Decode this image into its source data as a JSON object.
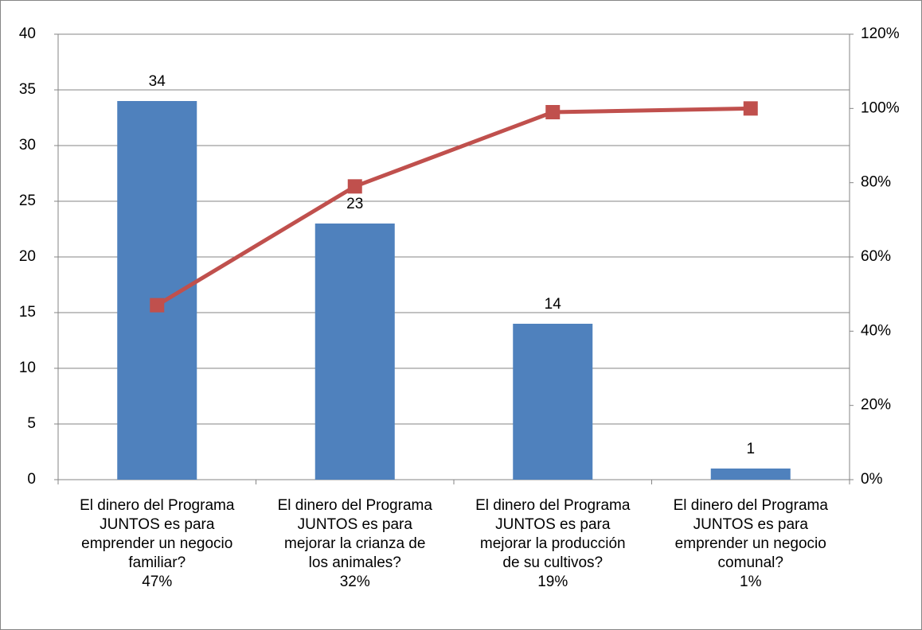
{
  "chart_data": {
    "type": "bar",
    "categories": [
      "El dinero del Programa\nJUNTOS es para\nemprender un negocio\nfamiliar?\n47%",
      "El dinero del Programa\nJUNTOS es para\nmejorar la crianza de\nlos animales?\n32%",
      "El dinero del Programa\nJUNTOS es para\nmejorar la producción\nde su cultivos?\n19%",
      "El dinero del Programa\nJUNTOS es para\nemprender un negocio\ncomunal?\n1%"
    ],
    "series": [
      {
        "type": "bar",
        "color": "#4f81bd",
        "values": [
          34,
          23,
          14,
          1
        ]
      },
      {
        "type": "line",
        "color": "#c0504d",
        "axis": "y2",
        "values": [
          47,
          79,
          99,
          100
        ]
      }
    ],
    "ylim": [
      0,
      40
    ],
    "yticks": [
      0,
      5,
      10,
      15,
      20,
      25,
      30,
      35,
      40
    ],
    "y2lim": [
      0,
      120
    ],
    "y2ticks": [
      {
        "value": 0,
        "label": "0%"
      },
      {
        "value": 20,
        "label": "20%"
      },
      {
        "value": 40,
        "label": "40%"
      },
      {
        "value": 60,
        "label": "60%"
      },
      {
        "value": 80,
        "label": "80%"
      },
      {
        "value": 100,
        "label": "100%"
      },
      {
        "value": 120,
        "label": "120%"
      }
    ],
    "grid": true
  }
}
